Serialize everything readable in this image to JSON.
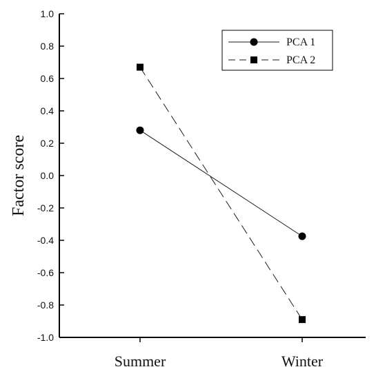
{
  "chart_data": {
    "type": "line",
    "categories": [
      "Summer",
      "Winter"
    ],
    "series": [
      {
        "name": "PCA 1",
        "values": [
          0.28,
          -0.375
        ],
        "marker": "circle",
        "line_style": "solid"
      },
      {
        "name": "PCA 2",
        "values": [
          0.67,
          -0.89
        ],
        "marker": "square",
        "line_style": "dashed"
      }
    ],
    "xlabel": "",
    "ylabel": "Factor score",
    "ylim": [
      -1.0,
      1.0
    ],
    "yticks": [
      1.0,
      0.8,
      0.6,
      0.4,
      0.2,
      0.0,
      -0.2,
      -0.4,
      -0.6,
      -0.8,
      -1.0
    ],
    "ytick_labels": [
      "1.0",
      "0.8",
      "0.6",
      "0.4",
      "0.2",
      "0.0",
      "-0.2",
      "-0.4",
      "-0.6",
      "-0.8",
      "-1.0"
    ],
    "grid": false,
    "legend_position": "top-right",
    "colors": {
      "line": "#1a1a1a",
      "marker": "#000000"
    }
  }
}
